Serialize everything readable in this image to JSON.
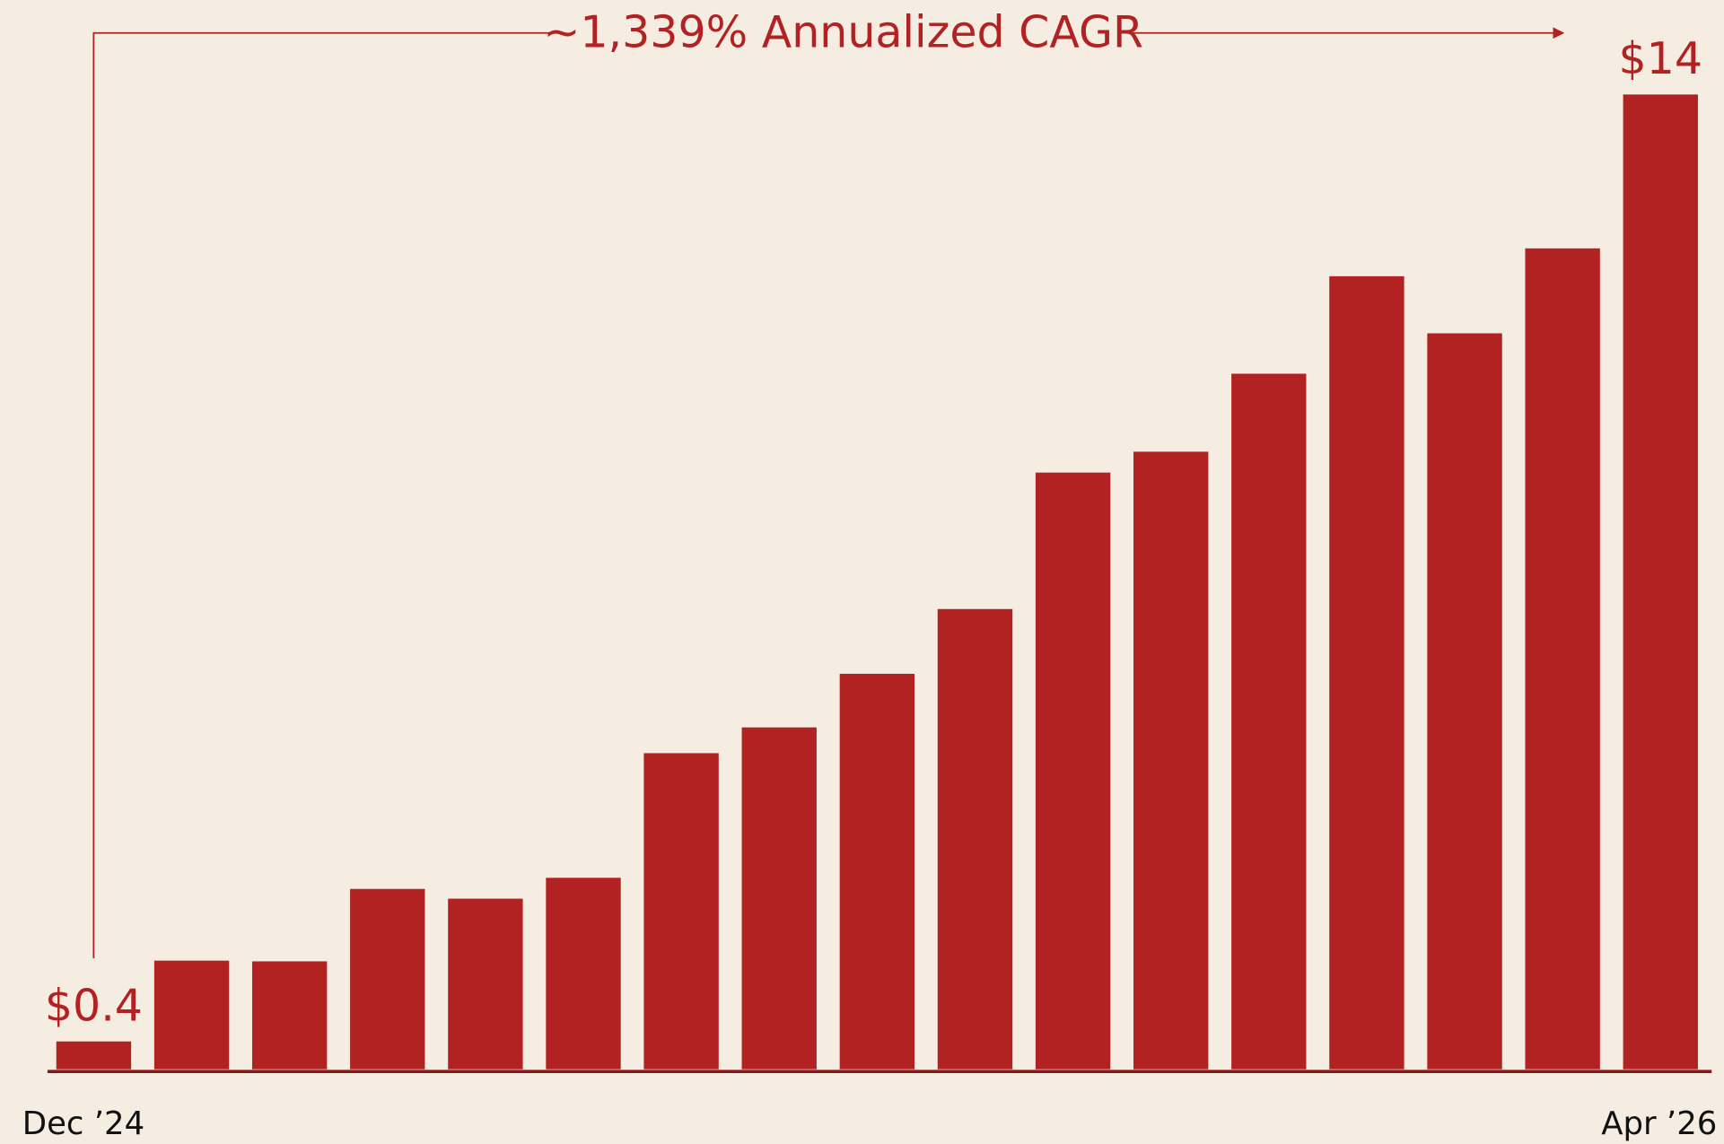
{
  "chart_data": {
    "type": "bar",
    "annotation": "~1,339% Annualized CAGR",
    "categories": [
      "Dec ’24",
      null,
      null,
      null,
      null,
      null,
      null,
      null,
      null,
      null,
      null,
      null,
      null,
      null,
      null,
      null,
      "Apr ’26"
    ],
    "values": [
      0.4,
      1.56,
      1.55,
      2.59,
      2.45,
      2.75,
      4.54,
      4.91,
      5.68,
      6.61,
      8.57,
      8.87,
      9.99,
      11.39,
      10.57,
      11.79,
      14
    ],
    "value_labels": [
      "$0.4",
      null,
      null,
      null,
      null,
      null,
      null,
      null,
      null,
      null,
      null,
      null,
      null,
      null,
      null,
      null,
      "$14"
    ],
    "color": "#b22222",
    "ylim": [
      0,
      14
    ]
  }
}
